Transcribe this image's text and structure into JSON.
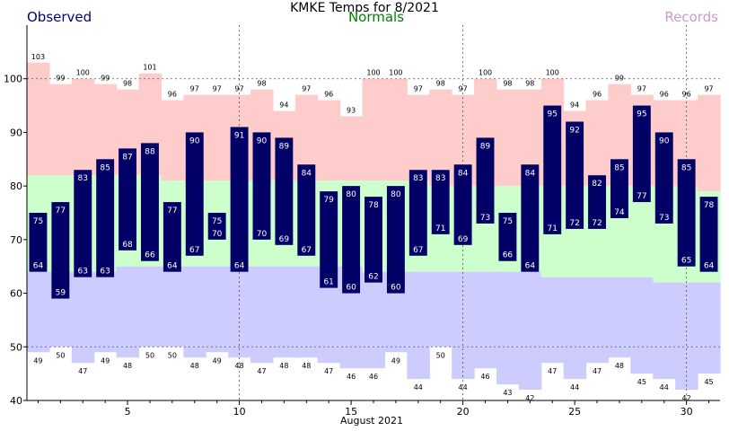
{
  "header": {
    "title": "KMKE Temps for 8/2021",
    "observed_label": "Observed",
    "normals_label": "Normals",
    "records_label": "Records"
  },
  "colors": {
    "record_band": "#ffcccc",
    "normal_band": "#ccffcc",
    "record_low_band": "#ccccff",
    "observed_bar": "#000066",
    "observed_text": "#000080",
    "normals_text": "#008000",
    "records_text": "#cc99cc"
  },
  "chart_data": {
    "type": "bar",
    "title": "KMKE Temps for 8/2021",
    "xlabel": "August 2021",
    "ylabel": "",
    "xlim": [
      1,
      31
    ],
    "ylim": [
      40,
      110
    ],
    "x_ticks": [
      5,
      10,
      15,
      20,
      25,
      30
    ],
    "y_ticks": [
      40,
      50,
      60,
      70,
      80,
      90,
      100
    ],
    "grid": "dotted lines at 50 and 100 and vertical lines at days 10, 20, 30",
    "days": [
      1,
      2,
      3,
      4,
      5,
      6,
      7,
      8,
      9,
      10,
      11,
      12,
      13,
      14,
      15,
      16,
      17,
      18,
      19,
      20,
      21,
      22,
      23,
      24,
      25,
      26,
      27,
      28,
      29,
      30,
      31
    ],
    "observed_high": [
      75,
      77,
      83,
      85,
      87,
      88,
      77,
      90,
      75,
      91,
      90,
      89,
      84,
      79,
      80,
      78,
      80,
      83,
      83,
      84,
      89,
      75,
      84,
      95,
      92,
      82,
      85,
      95,
      90,
      85,
      78
    ],
    "observed_low": [
      64,
      59,
      63,
      63,
      68,
      66,
      64,
      67,
      70,
      64,
      70,
      69,
      67,
      61,
      60,
      62,
      60,
      67,
      71,
      69,
      73,
      66,
      64,
      71,
      72,
      72,
      74,
      77,
      73,
      65,
      64
    ],
    "normal_high": [
      82,
      82,
      82,
      82,
      82,
      82,
      81,
      81,
      81,
      81,
      81,
      81,
      81,
      81,
      81,
      81,
      81,
      81,
      80,
      80,
      80,
      80,
      80,
      80,
      80,
      80,
      80,
      80,
      80,
      80,
      79
    ],
    "normal_low": [
      64,
      64,
      64,
      64,
      65,
      65,
      65,
      65,
      65,
      65,
      65,
      65,
      65,
      65,
      65,
      64,
      64,
      64,
      64,
      64,
      64,
      64,
      64,
      63,
      63,
      63,
      63,
      63,
      62,
      62,
      62
    ],
    "record_high": [
      103,
      99,
      100,
      99,
      98,
      101,
      96,
      97,
      97,
      97,
      98,
      94,
      97,
      96,
      93,
      100,
      100,
      97,
      98,
      97,
      100,
      98,
      98,
      100,
      94,
      96,
      99,
      97,
      96,
      96,
      97
    ],
    "record_low": [
      49,
      50,
      47,
      49,
      48,
      50,
      50,
      48,
      49,
      48,
      47,
      48,
      48,
      47,
      46,
      46,
      49,
      44,
      50,
      44,
      46,
      43,
      42,
      47,
      44,
      47,
      48,
      45,
      44,
      42,
      45
    ],
    "legend": [
      "Observed",
      "Normals",
      "Records"
    ]
  }
}
